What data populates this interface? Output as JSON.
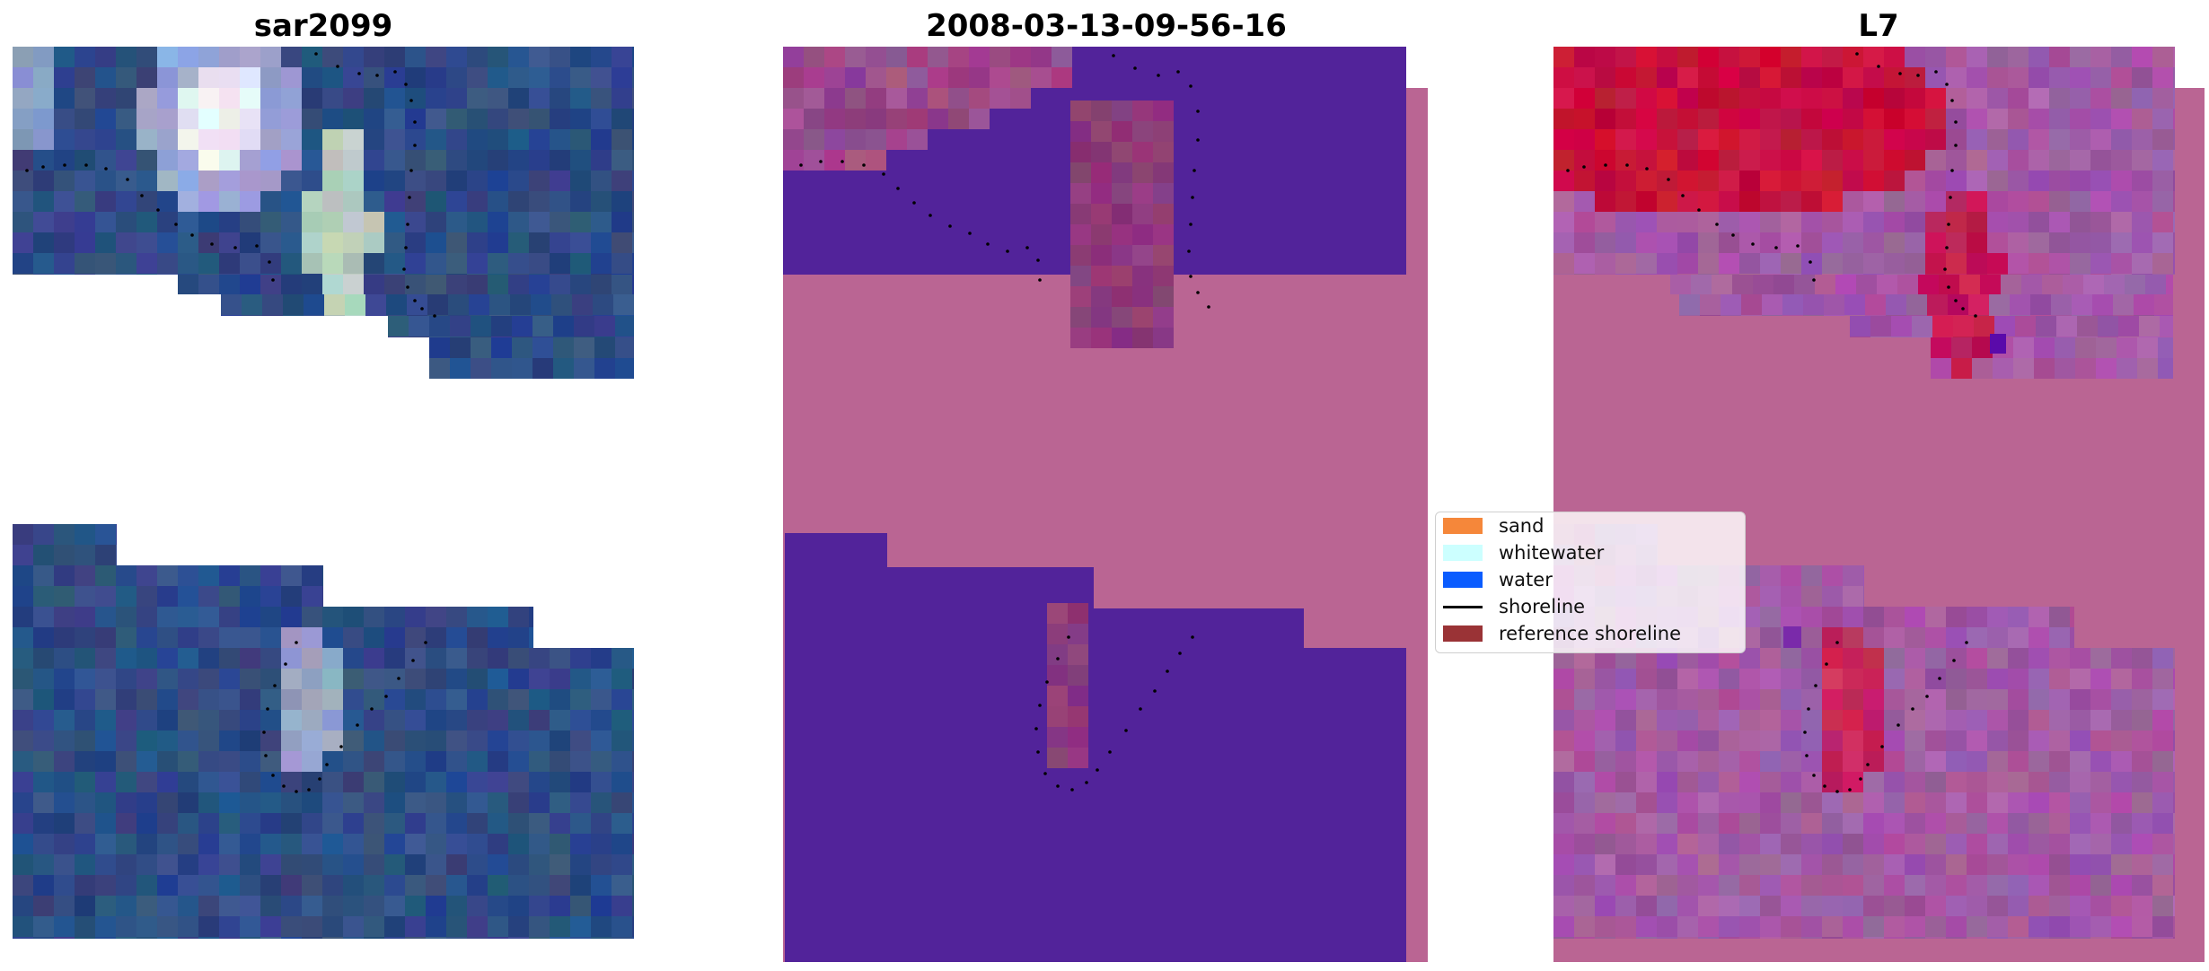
{
  "panels": [
    {
      "title": "sar2099"
    },
    {
      "title": "2008-03-13-09-56-16"
    },
    {
      "title": "L7"
    }
  ],
  "legend": {
    "items": [
      {
        "label": "sand",
        "color": "#f5873a",
        "kind": "patch"
      },
      {
        "label": "whitewater",
        "color": "#ccffff",
        "kind": "patch"
      },
      {
        "label": "water",
        "color": "#0a5cff",
        "kind": "patch"
      },
      {
        "label": "shoreline",
        "color": "#000000",
        "kind": "line"
      },
      {
        "label": "reference shoreline",
        "color": "#9a3336",
        "kind": "patch"
      }
    ]
  },
  "colors": {
    "rgb_water": "#2f4c85",
    "class_water": "#52239a",
    "class_nodata": "#ba6593",
    "mndwi_red": "#c8103c",
    "mndwi_purple": "#a25aa4",
    "shoreline_points": "#000000"
  }
}
